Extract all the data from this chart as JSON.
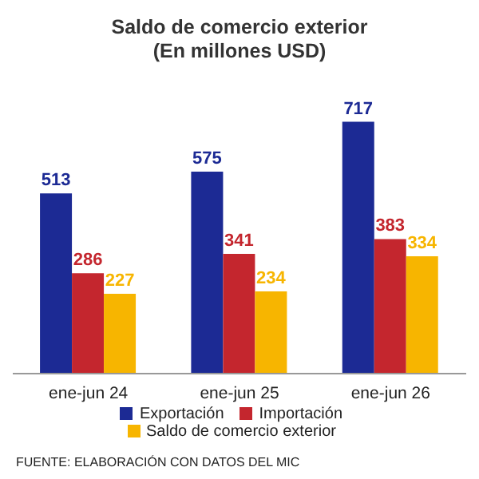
{
  "chart_data": {
    "type": "bar",
    "title": "Saldo de comercio exterior\n(En millones USD)",
    "categories": [
      "ene-jun 24",
      "ene-jun 25",
      "ene-jun 26"
    ],
    "series": [
      {
        "name": "Exportación",
        "color": "#1c2a94",
        "values": [
          513,
          575,
          717
        ]
      },
      {
        "name": "Importación",
        "color": "#c4262e",
        "values": [
          286,
          341,
          383
        ]
      },
      {
        "name": "Saldo de comercio exterior",
        "color": "#f7b500",
        "values": [
          227,
          234,
          334
        ]
      }
    ],
    "data_labels": true,
    "legend": "bottom",
    "grid": false,
    "annotations": [
      "FUENTE: ELABORACIÓN CON DATOS DEL MIC"
    ]
  }
}
